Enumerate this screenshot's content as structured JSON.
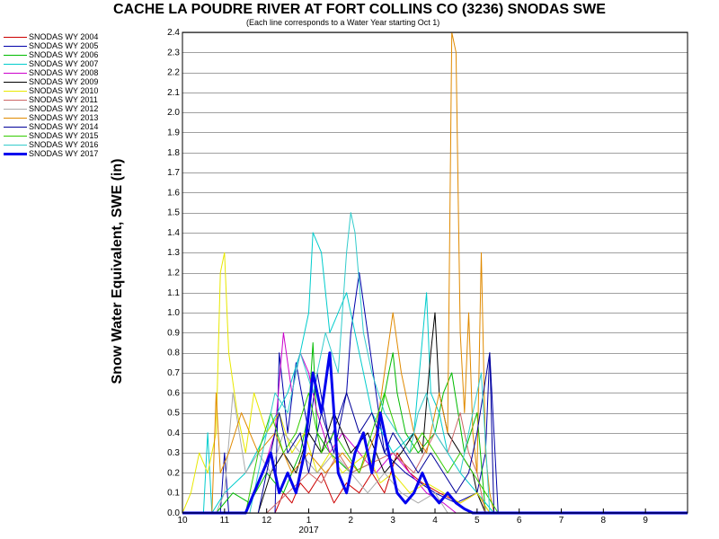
{
  "chart_data": {
    "type": "line",
    "title": "CACHE LA POUDRE RIVER AT FORT COLLINS CO (3236) SNODAS SWE",
    "subtitle": "(Each line corresponds to a Water Year starting Oct 1)",
    "ylabel": "Snow Water Equivalent, SWE (in)",
    "xlabel": "",
    "x_ticks": [
      {
        "m": 10,
        "label": "10"
      },
      {
        "m": 11,
        "label": "11"
      },
      {
        "m": 12,
        "label": "12"
      },
      {
        "m": 13,
        "label": "1"
      },
      {
        "m": 14,
        "label": "2"
      },
      {
        "m": 15,
        "label": "3"
      },
      {
        "m": 16,
        "label": "4"
      },
      {
        "m": 17,
        "label": "5"
      },
      {
        "m": 18,
        "label": "6"
      },
      {
        "m": 19,
        "label": "7"
      },
      {
        "m": 20,
        "label": "8"
      },
      {
        "m": 21,
        "label": "9"
      }
    ],
    "year_label": "2017",
    "xlim": [
      10,
      22
    ],
    "ylim": [
      0,
      2.4
    ],
    "yticks": [
      0.0,
      0.1,
      0.2,
      0.3,
      0.4,
      0.5,
      0.6,
      0.7,
      0.8,
      0.9,
      1.0,
      1.1,
      1.2,
      1.3,
      1.4,
      1.5,
      1.6,
      1.7,
      1.8,
      1.9,
      2.0,
      2.1,
      2.2,
      2.3,
      2.4
    ],
    "grid": true,
    "legend_position": "left",
    "series": [
      {
        "name": "SNODAS WY 2004",
        "color": "#cc0000",
        "width": 1,
        "x": [
          10,
          12.2,
          12.4,
          12.6,
          12.8,
          13.0,
          13.3,
          13.6,
          13.9,
          14.2,
          14.5,
          14.8,
          15.1,
          15.4,
          15.7,
          16.1,
          16.6,
          17.0,
          17.3,
          22
        ],
        "y": [
          0,
          0,
          0.1,
          0.05,
          0.15,
          0.1,
          0.2,
          0.05,
          0.15,
          0.1,
          0.2,
          0.1,
          0.3,
          0.2,
          0.15,
          0.1,
          0.05,
          0.1,
          0,
          0
        ]
      },
      {
        "name": "SNODAS WY 2005",
        "color": "#0000aa",
        "width": 1,
        "x": [
          10,
          10.9,
          11.0,
          11.1,
          12.2,
          12.3,
          12.5,
          12.7,
          13.0,
          13.2,
          13.5,
          13.9,
          14.0,
          14.2,
          14.4,
          14.6,
          14.8,
          15.3,
          16.0,
          16.5,
          17.0,
          17.2,
          17.3,
          17.5,
          22
        ],
        "y": [
          0,
          0,
          0.3,
          0,
          0,
          0.8,
          0.4,
          0.75,
          0.4,
          0.7,
          0.35,
          0.6,
          0.9,
          1.2,
          0.9,
          0.6,
          0.3,
          0.2,
          0.1,
          0.05,
          0.1,
          0.3,
          0.8,
          0,
          0
        ]
      },
      {
        "name": "SNODAS WY 2006",
        "color": "#00bb00",
        "width": 1,
        "x": [
          10,
          10.8,
          11.2,
          11.6,
          12.0,
          12.4,
          12.8,
          13.0,
          13.1,
          13.2,
          13.5,
          14.0,
          14.5,
          14.9,
          15.0,
          15.1,
          15.3,
          15.6,
          16.0,
          16.2,
          16.4,
          16.7,
          17.0,
          17.2,
          22
        ],
        "y": [
          0,
          0,
          0.1,
          0.05,
          0.2,
          0.1,
          0.3,
          0.5,
          0.85,
          0.4,
          0.3,
          0.2,
          0.25,
          0.7,
          0.8,
          0.6,
          0.4,
          0.3,
          0.4,
          0.6,
          0.7,
          0.3,
          0.5,
          0,
          0
        ]
      },
      {
        "name": "SNODAS WY 2007",
        "color": "#00cccc",
        "width": 1,
        "x": [
          10,
          10.5,
          10.6,
          10.7,
          11.0,
          11.5,
          12.0,
          12.5,
          12.8,
          13.0,
          13.1,
          13.3,
          13.5,
          13.9,
          14.2,
          14.5,
          15.0,
          15.5,
          15.8,
          15.9,
          16.1,
          16.3,
          16.6,
          17.0,
          17.4,
          22
        ],
        "y": [
          0,
          0,
          0.4,
          0,
          0.1,
          0.2,
          0.4,
          0.6,
          0.8,
          1.0,
          1.4,
          1.3,
          0.9,
          1.1,
          0.8,
          0.5,
          0.3,
          0.4,
          1.1,
          0.6,
          0.5,
          0.3,
          0.2,
          0.1,
          0,
          0
        ]
      },
      {
        "name": "SNODAS WY 2008",
        "color": "#cc00cc",
        "width": 1,
        "x": [
          10,
          11.5,
          11.9,
          12.2,
          12.4,
          12.6,
          12.8,
          13.0,
          13.2,
          13.5,
          13.8,
          14.2,
          14.6,
          15.0,
          15.4,
          15.8,
          16.2,
          16.5,
          22
        ],
        "y": [
          0,
          0,
          0.2,
          0.4,
          0.9,
          0.6,
          0.8,
          0.7,
          0.5,
          0.3,
          0.4,
          0.3,
          0.2,
          0.3,
          0.2,
          0.1,
          0.05,
          0,
          0
        ]
      },
      {
        "name": "SNODAS WY 2009",
        "color": "#000000",
        "width": 1,
        "x": [
          10,
          11.8,
          12.1,
          12.4,
          12.7,
          13.0,
          13.3,
          13.6,
          14.0,
          14.4,
          14.8,
          15.2,
          15.5,
          15.7,
          15.9,
          16.0,
          16.1,
          16.3,
          16.6,
          16.9,
          17.0,
          17.2,
          22
        ],
        "y": [
          0,
          0,
          0.2,
          0.3,
          0.2,
          0.4,
          0.3,
          0.5,
          0.3,
          0.4,
          0.2,
          0.3,
          0.4,
          0.3,
          0.8,
          1.0,
          0.6,
          0.4,
          0.3,
          0.2,
          0.1,
          0,
          0
        ]
      },
      {
        "name": "SNODAS WY 2010",
        "color": "#e8e800",
        "width": 1,
        "x": [
          10,
          10.2,
          10.4,
          10.6,
          10.8,
          10.9,
          11.0,
          11.1,
          11.3,
          11.5,
          11.7,
          12.0,
          12.3,
          12.6,
          12.9,
          13.2,
          13.5,
          13.8,
          14.1,
          14.4,
          14.7,
          15.0,
          15.4,
          15.8,
          16.2,
          16.6,
          17.0,
          17.3,
          22
        ],
        "y": [
          0,
          0.1,
          0.3,
          0.2,
          0.4,
          1.2,
          1.3,
          0.8,
          0.5,
          0.3,
          0.6,
          0.4,
          0.5,
          0.3,
          0.4,
          0.2,
          0.3,
          0.2,
          0.25,
          0.3,
          0.15,
          0.2,
          0.1,
          0.15,
          0.1,
          0.05,
          0.1,
          0,
          0
        ]
      },
      {
        "name": "SNODAS WY 2011",
        "color": "#cc6666",
        "width": 1,
        "x": [
          10,
          12.0,
          12.5,
          13.0,
          13.3,
          13.7,
          14.0,
          14.5,
          15.0,
          15.5,
          16.0,
          16.3,
          16.6,
          16.8,
          17.0,
          17.2,
          22
        ],
        "y": [
          0,
          0,
          0.1,
          0.2,
          0.15,
          0.3,
          0.2,
          0.25,
          0.3,
          0.2,
          0.4,
          0.3,
          0.5,
          0.3,
          0.2,
          0,
          0
        ]
      },
      {
        "name": "SNODAS WY 2012",
        "color": "#aaaaaa",
        "width": 1,
        "x": [
          10,
          10.8,
          11.0,
          11.2,
          11.5,
          11.8,
          12.1,
          12.4,
          12.8,
          13.2,
          13.6,
          14.0,
          14.4,
          14.8,
          15.2,
          15.6,
          16.0,
          16.3,
          22
        ],
        "y": [
          0,
          0,
          0.1,
          0.6,
          0.2,
          0.3,
          0.2,
          0.4,
          0.3,
          0.2,
          0.3,
          0.2,
          0.1,
          0.2,
          0.1,
          0.05,
          0.1,
          0,
          0
        ]
      },
      {
        "name": "SNODAS WY 2013",
        "color": "#e08a00",
        "width": 1,
        "x": [
          10,
          10.7,
          10.8,
          10.9,
          11.1,
          11.4,
          11.8,
          12.2,
          12.6,
          13.0,
          13.4,
          13.8,
          14.2,
          14.6,
          14.8,
          15.0,
          15.2,
          15.5,
          15.8,
          16.1,
          16.3,
          16.4,
          16.5,
          16.6,
          16.7,
          16.8,
          16.9,
          17.0,
          17.1,
          17.2,
          17.3,
          17.4,
          22
        ],
        "y": [
          0,
          0,
          0.6,
          0.2,
          0.3,
          0.5,
          0.3,
          0.4,
          0.2,
          0.3,
          0.2,
          0.3,
          0.2,
          0.4,
          0.7,
          1.0,
          0.7,
          0.4,
          0.3,
          0.6,
          0.4,
          2.4,
          2.3,
          0.9,
          0.5,
          1.0,
          0.4,
          0.2,
          1.3,
          0.3,
          0.1,
          0,
          0
        ]
      },
      {
        "name": "SNODAS WY 2014",
        "color": "#000099",
        "width": 1,
        "x": [
          10,
          11.8,
          12.1,
          12.3,
          12.5,
          12.8,
          13.0,
          13.3,
          13.6,
          13.9,
          14.2,
          14.5,
          14.8,
          15.0,
          15.3,
          15.6,
          15.9,
          16.2,
          16.5,
          16.8,
          17.0,
          17.3,
          17.4,
          22
        ],
        "y": [
          0,
          0,
          0.3,
          0.5,
          0.3,
          0.4,
          0.2,
          0.5,
          0.3,
          0.6,
          0.4,
          0.5,
          0.3,
          0.4,
          0.3,
          0.2,
          0.3,
          0.2,
          0.1,
          0.2,
          0.4,
          0.8,
          0,
          0
        ]
      },
      {
        "name": "SNODAS WY 2015",
        "color": "#33cc00",
        "width": 1,
        "x": [
          10,
          11.5,
          11.8,
          12.1,
          12.4,
          12.7,
          13.0,
          13.3,
          13.6,
          13.9,
          14.2,
          14.5,
          14.8,
          15.1,
          15.4,
          15.7,
          16.0,
          16.3,
          16.6,
          16.9,
          17.2,
          17.5,
          22
        ],
        "y": [
          0,
          0,
          0.3,
          0.5,
          0.3,
          0.4,
          0.6,
          0.3,
          0.4,
          0.3,
          0.2,
          0.4,
          0.6,
          0.4,
          0.3,
          0.4,
          0.3,
          0.2,
          0.3,
          0.2,
          0.1,
          0,
          0
        ]
      },
      {
        "name": "SNODAS WY 2016",
        "color": "#33cccc",
        "width": 1,
        "x": [
          10,
          11.6,
          11.9,
          12.2,
          12.5,
          12.8,
          13.1,
          13.4,
          13.7,
          13.9,
          14.0,
          14.1,
          14.3,
          14.5,
          14.8,
          15.1,
          15.4,
          15.6,
          15.8,
          16.0,
          16.3,
          16.6,
          16.9,
          17.1,
          17.3,
          22
        ],
        "y": [
          0,
          0,
          0.3,
          0.6,
          0.5,
          0.8,
          0.6,
          0.9,
          0.7,
          1.3,
          1.5,
          1.4,
          0.9,
          0.7,
          0.5,
          0.4,
          0.3,
          0.5,
          0.6,
          0.4,
          0.3,
          0.2,
          0.5,
          0.7,
          0,
          0
        ]
      },
      {
        "name": "SNODAS WY 2017",
        "color": "#0000ee",
        "width": 3,
        "x": [
          10,
          11.5,
          11.7,
          11.9,
          12.1,
          12.3,
          12.5,
          12.7,
          12.9,
          13.1,
          13.3,
          13.5,
          13.7,
          13.9,
          14.1,
          14.3,
          14.5,
          14.7,
          14.9,
          15.1,
          15.3,
          15.5,
          15.7,
          15.9,
          16.1,
          16.3,
          16.5,
          16.7,
          16.9,
          22
        ],
        "y": [
          0,
          0,
          0.1,
          0.2,
          0.3,
          0.1,
          0.2,
          0.1,
          0.3,
          0.7,
          0.5,
          0.8,
          0.2,
          0.1,
          0.3,
          0.4,
          0.2,
          0.5,
          0.3,
          0.1,
          0.05,
          0.1,
          0.2,
          0.1,
          0.05,
          0.1,
          0.05,
          0.02,
          0,
          0
        ]
      }
    ]
  }
}
